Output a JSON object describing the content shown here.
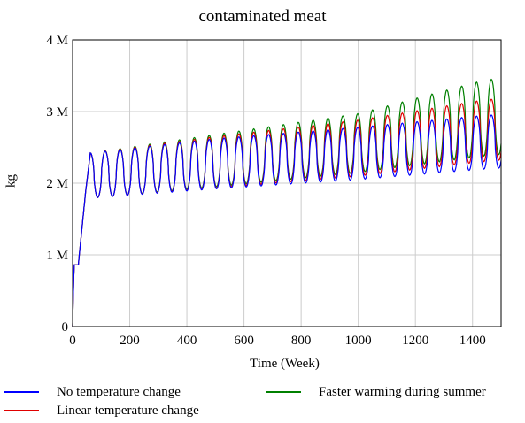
{
  "chart_data": {
    "type": "line",
    "title": "contaminated meat",
    "xlabel": "Time (Week)",
    "ylabel": "kg",
    "xlim": [
      0,
      1500
    ],
    "ylim": [
      0,
      4000000
    ],
    "x_ticks": [
      0,
      200,
      400,
      600,
      800,
      1000,
      1200,
      1400
    ],
    "x_tick_labels": [
      "0",
      "200",
      "400",
      "600",
      "800",
      "1000",
      "1200",
      "1400"
    ],
    "y_ticks": [
      0,
      1000000,
      2000000,
      3000000,
      4000000
    ],
    "y_tick_labels": [
      "0",
      "1 M",
      "2 M",
      "3 M",
      "4 M"
    ],
    "grid": true,
    "legend_position": "bottom",
    "cycle_weeks": 52,
    "series": [
      {
        "name": "No temperature change",
        "color": "#0000ff",
        "peaks": [
          [
            60,
            2420000
          ],
          [
            500,
            2620000
          ],
          [
            1000,
            2780000
          ],
          [
            1452,
            2950000
          ]
        ],
        "troughs": [
          [
            90,
            1800000
          ],
          [
            500,
            1920000
          ],
          [
            1000,
            2050000
          ],
          [
            1480,
            2210000
          ]
        ]
      },
      {
        "name": "Linear temperature change",
        "color": "#e00000",
        "peaks": [
          [
            60,
            2420000
          ],
          [
            500,
            2650000
          ],
          [
            1000,
            2880000
          ],
          [
            1452,
            3170000
          ]
        ],
        "troughs": [
          [
            90,
            1800000
          ],
          [
            500,
            1930000
          ],
          [
            1000,
            2100000
          ],
          [
            1480,
            2320000
          ]
        ]
      },
      {
        "name": "Faster warming during summer",
        "color": "#008000",
        "peaks": [
          [
            60,
            2420000
          ],
          [
            500,
            2680000
          ],
          [
            1000,
            2970000
          ],
          [
            1452,
            3450000
          ]
        ],
        "troughs": [
          [
            90,
            1800000
          ],
          [
            500,
            1950000
          ],
          [
            1000,
            2150000
          ],
          [
            1480,
            2400000
          ]
        ]
      }
    ]
  }
}
